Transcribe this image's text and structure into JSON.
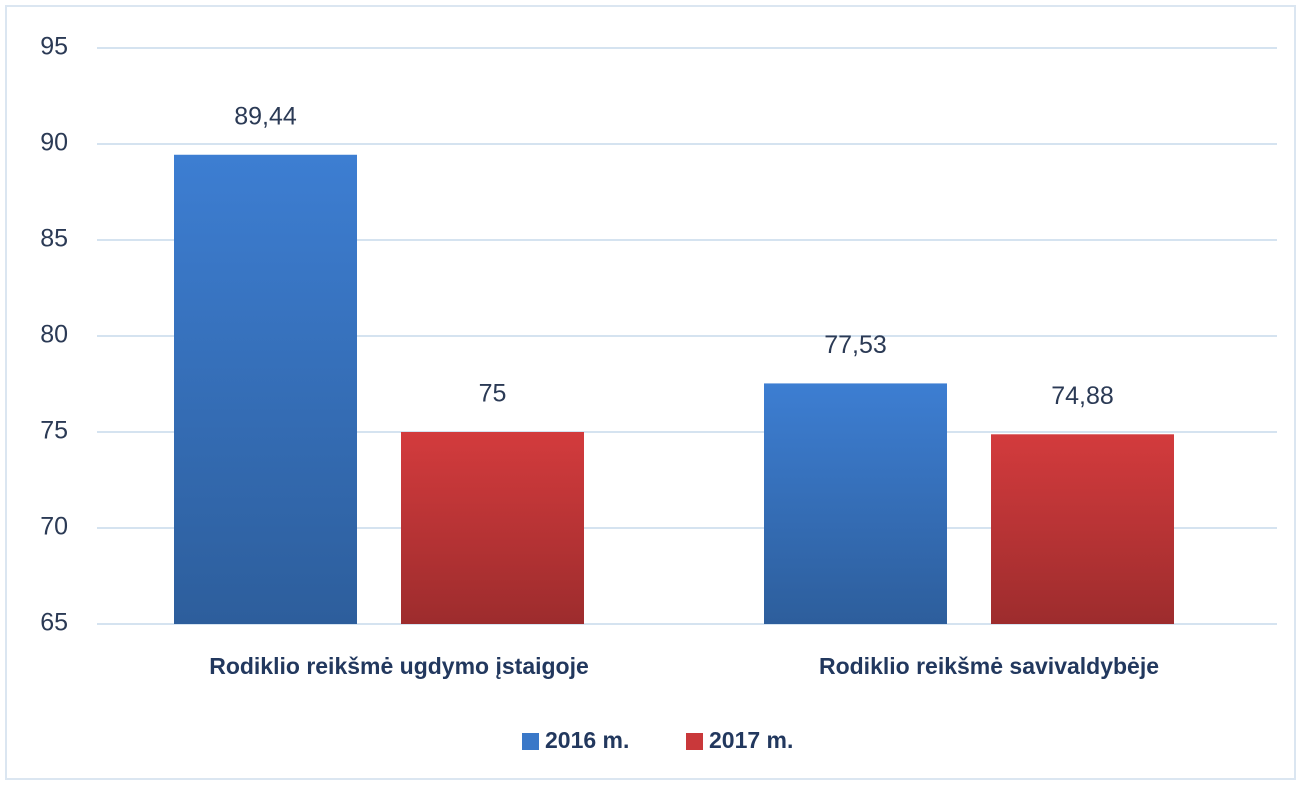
{
  "chart_data": {
    "type": "bar",
    "categories": [
      "Rodiklio reikšmė ugdymo įstaigoje",
      "Rodiklio reikšmė savivaldybėje"
    ],
    "series": [
      {
        "name": "2016 m.",
        "color": "#3a78c8",
        "values": [
          89.44,
          77.53
        ],
        "value_labels": [
          "89,44",
          "77,53"
        ]
      },
      {
        "name": "2017 m.",
        "color": "#c9383a",
        "values": [
          75,
          74.88
        ],
        "value_labels": [
          "75",
          "74,88"
        ]
      }
    ],
    "ylim": [
      65,
      95
    ],
    "yticks": [
      65,
      70,
      75,
      80,
      85,
      90,
      95
    ],
    "grid": true,
    "legend": "bottom"
  }
}
